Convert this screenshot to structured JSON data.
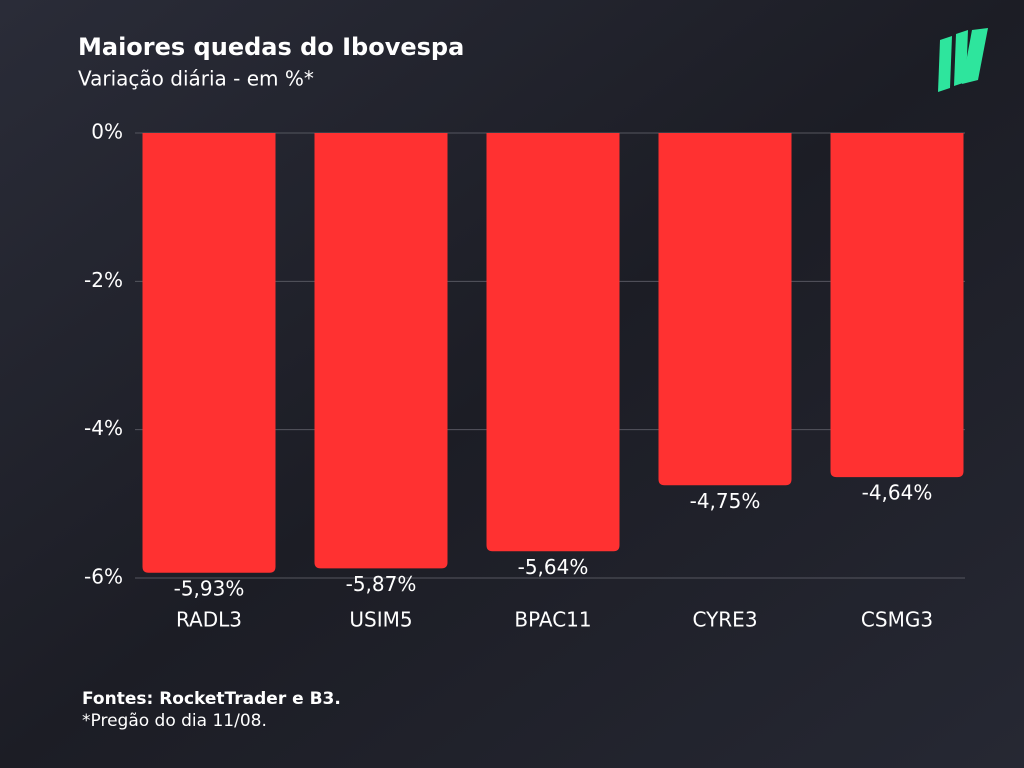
{
  "chart_data": {
    "type": "bar",
    "title": "Maiores quedas do Ibovespa",
    "subtitle": "Variação diária - em %*",
    "categories": [
      "RADL3",
      "USIM5",
      "BPAC11",
      "CYRE3",
      "CSMG3"
    ],
    "values": [
      -5.93,
      -5.87,
      -5.64,
      -4.75,
      -4.64
    ],
    "value_labels": [
      "-5,93%",
      "-5,87%",
      "-5,64%",
      "-4,75%",
      "-4,64%"
    ],
    "color": "#ff3131",
    "ylim": [
      0,
      -6
    ],
    "yticks": [
      {
        "value": 0,
        "label": "0%"
      },
      {
        "value": -2,
        "label": "-2%"
      },
      {
        "value": -4,
        "label": "-4%"
      },
      {
        "value": -6,
        "label": "-6%"
      }
    ],
    "grid": true,
    "source": "Fontes: RocketTrader e B3.",
    "note": "*Pregão do dia 11/08."
  }
}
